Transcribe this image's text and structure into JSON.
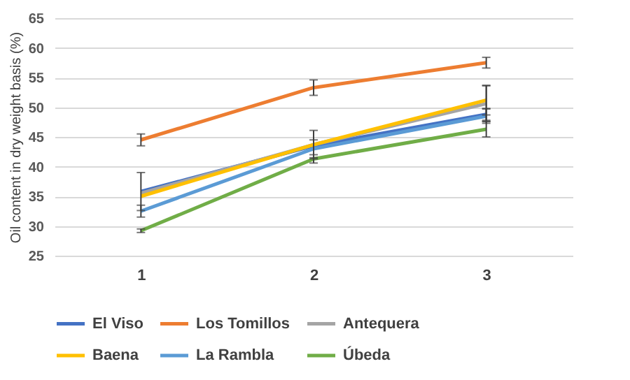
{
  "chart_data": {
    "type": "line",
    "ylabel": "Oil content in dry weight basis (%)",
    "categories": [
      "1",
      "2",
      "3"
    ],
    "series": [
      {
        "name": "El Viso",
        "color": "#4472c4",
        "values": [
          35.8,
          43.5,
          48.8
        ],
        "errors": [
          3.2,
          null,
          1.0
        ]
      },
      {
        "name": "Los Tomillos",
        "color": "#ed7d31",
        "values": [
          44.5,
          53.3,
          57.5
        ],
        "errors": [
          1.0,
          1.3,
          0.9
        ]
      },
      {
        "name": "Antequera",
        "color": "#a5a5a5",
        "values": [
          35.5,
          43.7,
          50.6
        ],
        "errors": [
          null,
          2.4,
          3.0
        ]
      },
      {
        "name": "Baena",
        "color": "#ffc000",
        "values": [
          35.0,
          43.7,
          51.2
        ],
        "errors": [
          null,
          null,
          2.5
        ]
      },
      {
        "name": "La Rambla",
        "color": "#5b9bd5",
        "values": [
          32.5,
          43.0,
          48.5
        ],
        "errors": [
          1.0,
          1.5,
          1.2
        ]
      },
      {
        "name": "Úbeda",
        "color": "#70ad47",
        "values": [
          29.2,
          41.3,
          46.3
        ],
        "errors": [
          0.3,
          0.7,
          1.3
        ]
      }
    ],
    "ylim": [
      25,
      65
    ],
    "yticks": [
      25,
      30,
      35,
      40,
      45,
      50,
      55,
      60,
      65
    ],
    "grid": "y",
    "legend": "bottom",
    "marker": "none",
    "line_style": "solid"
  }
}
